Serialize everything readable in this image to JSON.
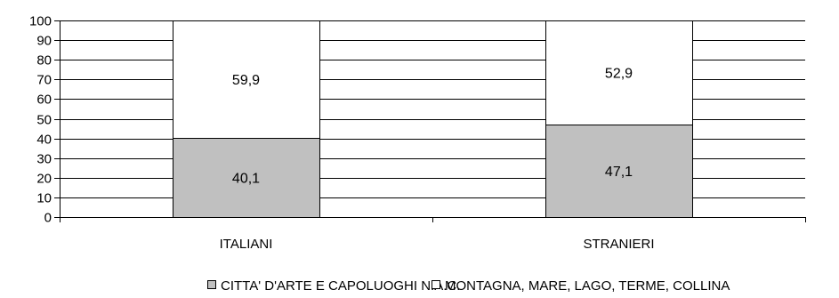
{
  "chart_data": {
    "type": "bar",
    "stacked": true,
    "categories": [
      "ITALIANI",
      "STRANIERI"
    ],
    "series": [
      {
        "name": "CITTA' D'ARTE E CAPOLUOGHI N.A.C.",
        "values": [
          40.1,
          47.1
        ],
        "labels": [
          "40,1",
          "47,1"
        ],
        "color": "#c0c0c0"
      },
      {
        "name": "MONTAGNA, MARE, LAGO, TERME, COLLINA",
        "values": [
          59.9,
          52.9
        ],
        "labels": [
          "59,9",
          "52,9"
        ],
        "color": "#ffffff"
      }
    ],
    "yticks": [
      0,
      10,
      20,
      30,
      40,
      50,
      60,
      70,
      80,
      90,
      100
    ],
    "ylim": [
      0,
      100
    ],
    "grid": true,
    "legend": "bottom"
  }
}
